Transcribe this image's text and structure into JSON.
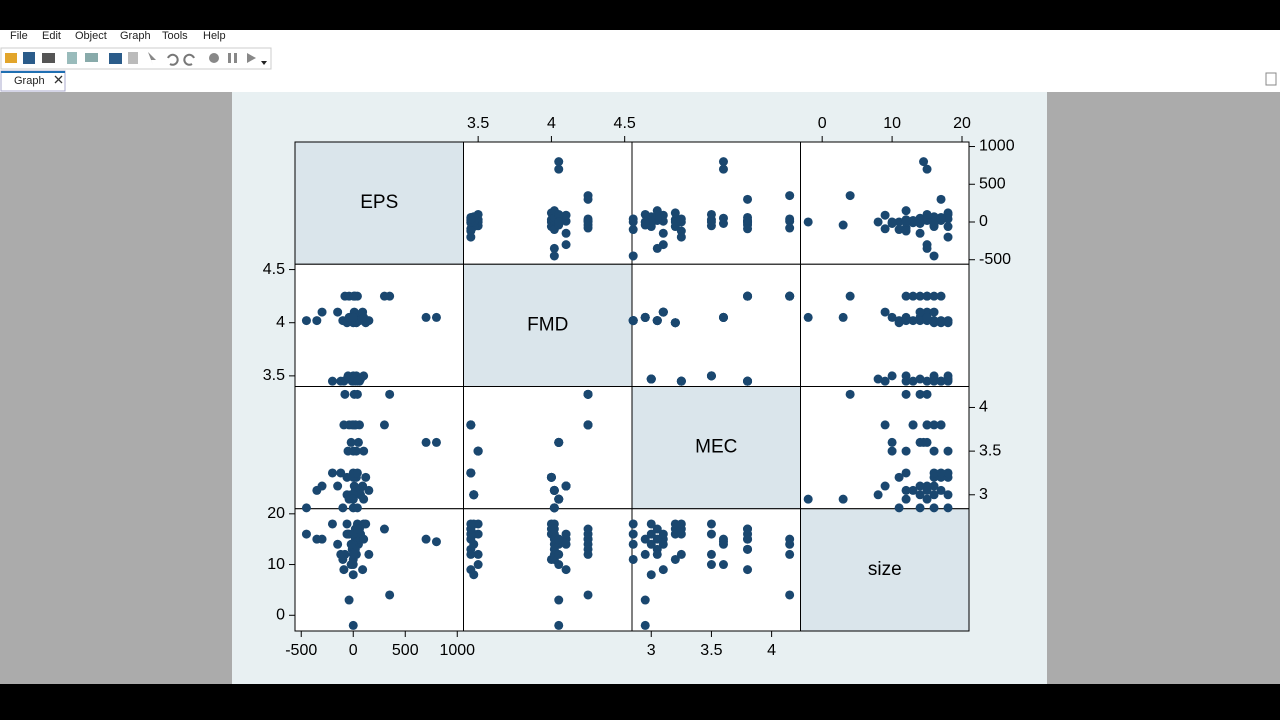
{
  "ui": {
    "menu": [
      "File",
      "Edit",
      "Object",
      "Graph",
      "Tools",
      "Help"
    ],
    "tab": "Graph"
  },
  "chart_data": {
    "type": "scatter-matrix",
    "color": "#1a476f",
    "variables": [
      {
        "name": "EPS",
        "lim": [
          -560,
          1060
        ],
        "ticks": [
          -500,
          0,
          500,
          1000
        ],
        "values": [
          10,
          40,
          -80,
          350,
          20,
          -40,
          300,
          5,
          50,
          800,
          700,
          -20,
          -60,
          30,
          120,
          0,
          -300,
          10,
          90,
          -150,
          -10,
          60,
          20,
          -90,
          30,
          -50,
          100,
          0,
          -450,
          0,
          40,
          -100,
          -350,
          20,
          60,
          150,
          -20,
          70,
          -60,
          0,
          100,
          0,
          -40,
          0,
          0,
          40,
          -120,
          -200
        ]
      },
      {
        "name": "FMD",
        "lim": [
          3.4,
          4.55
        ],
        "ticks": [
          3.5,
          4,
          4.5
        ],
        "values": [
          4.25,
          4.25,
          4.25,
          4.25,
          4.25,
          4.25,
          4.25,
          4.25,
          4.05,
          4.05,
          4.05,
          4.05,
          4.0,
          4.0,
          4.0,
          4.0,
          4.1,
          4.1,
          4.1,
          4.1,
          3.45,
          3.45,
          3.45,
          3.45,
          3.5,
          3.5,
          3.5,
          3.5,
          4.02,
          4.02,
          4.02,
          4.02,
          4.02,
          4.02,
          4.02,
          4.02,
          3.47,
          3.47,
          3.47,
          3.47,
          4.05,
          4.05,
          4.05,
          4.05,
          3.45,
          3.45,
          3.45,
          3.45
        ]
      },
      {
        "name": "MEC",
        "lim": [
          2.84,
          4.24
        ],
        "ticks": [
          3,
          3.5,
          4
        ],
        "values": [
          4.15,
          4.15,
          4.15,
          4.15,
          3.8,
          3.8,
          3.8,
          3.8,
          3.6,
          3.6,
          3.6,
          3.6,
          3.2,
          3.2,
          3.2,
          3.2,
          3.1,
          3.1,
          3.1,
          3.1,
          3.8,
          3.8,
          3.8,
          3.8,
          3.5,
          3.5,
          3.5,
          3.5,
          2.85,
          2.85,
          2.85,
          2.85,
          3.05,
          3.05,
          3.05,
          3.05,
          3.0,
          3.0,
          3.0,
          3.0,
          2.95,
          2.95,
          2.95,
          2.95,
          3.25,
          3.25,
          3.25,
          3.25
        ]
      },
      {
        "name": "size",
        "lim": [
          -3.1,
          21
        ],
        "ticks": [
          0,
          10,
          20
        ],
        "values": [
          14,
          15,
          12,
          4,
          15,
          16,
          17,
          13,
          14,
          14.5,
          15,
          10,
          16,
          17,
          18,
          11,
          15,
          16,
          9,
          14,
          13,
          15,
          17,
          9,
          12,
          16,
          18,
          10,
          16,
          14,
          18,
          11,
          15,
          13,
          17,
          12,
          14,
          16,
          18,
          8,
          15,
          12,
          3,
          -2,
          16,
          17,
          12,
          18
        ]
      }
    ]
  }
}
